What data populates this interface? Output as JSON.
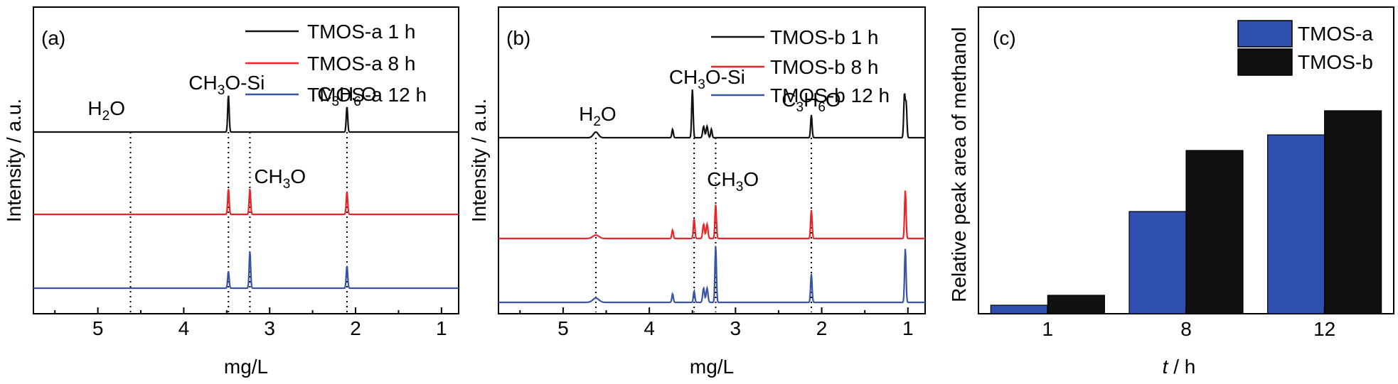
{
  "colors": {
    "black": "#111111",
    "red": "#e8262a",
    "blue": "#3a54a4",
    "bar_a": "#2f4fae",
    "bar_b": "#111111"
  },
  "chart_data": [
    {
      "type": "line",
      "panel_label": "(a)",
      "xlabel": "mg/L",
      "ylabel": "Intensity / a.u.",
      "xlim": [
        5.75,
        0.8
      ],
      "x_reversed": true,
      "x_ticks": [
        5,
        4,
        3,
        2,
        1
      ],
      "x_tick_labels": [
        "5",
        "4",
        "3",
        "2",
        "1"
      ],
      "legend": "top-right",
      "series": [
        {
          "name": "TMOS-a 1 h",
          "color_key": "black",
          "baseline": 0.62,
          "humps": [],
          "peaks": [
            {
              "x": 3.48,
              "h": 0.13,
              "w": 0.012
            },
            {
              "x": 2.1,
              "h": 0.09,
              "w": 0.012
            }
          ]
        },
        {
          "name": "TMOS-a 8 h",
          "color_key": "red",
          "baseline": 0.33,
          "humps": [],
          "peaks": [
            {
              "x": 3.48,
              "h": 0.09,
              "w": 0.012
            },
            {
              "x": 3.23,
              "h": 0.09,
              "w": 0.012
            },
            {
              "x": 2.1,
              "h": 0.08,
              "w": 0.012
            }
          ]
        },
        {
          "name": "TMOS-a 12 h",
          "color_key": "blue",
          "baseline": 0.07,
          "humps": [],
          "peaks": [
            {
              "x": 3.48,
              "h": 0.06,
              "w": 0.012
            },
            {
              "x": 3.23,
              "h": 0.13,
              "w": 0.012
            },
            {
              "x": 2.1,
              "h": 0.08,
              "w": 0.012
            }
          ]
        }
      ],
      "dotted_lines": [
        {
          "x": 4.62,
          "y_top": 0.62
        },
        {
          "x": 3.48,
          "y_top": 0.62
        },
        {
          "x": 3.23,
          "y_top": 0.62
        },
        {
          "x": 2.1,
          "y_top": 0.62
        }
      ],
      "annotations": [
        {
          "x": 4.9,
          "y": 0.68,
          "text": "H",
          "sub": "2",
          "rest": "O"
        },
        {
          "x": 3.5,
          "y": 0.77,
          "text": "CH",
          "sub": "3",
          "rest": "O-Si"
        },
        {
          "x": 2.88,
          "y": 0.44,
          "text": "CH",
          "sub": "3",
          "rest": "O"
        },
        {
          "x": 2.1,
          "y": 0.73,
          "text": "C",
          "sub": "3",
          "rest": "H",
          "sub2": "6",
          "rest2": "O"
        }
      ]
    },
    {
      "type": "line",
      "panel_label": "(b)",
      "xlabel": "mg/L",
      "ylabel": "Intensity / a.u.",
      "xlim": [
        5.75,
        0.8
      ],
      "x_reversed": true,
      "x_ticks": [
        5,
        4,
        3,
        2,
        1
      ],
      "x_tick_labels": [
        "5",
        "4",
        "3",
        "2",
        "1"
      ],
      "legend": "top-right",
      "series": [
        {
          "name": "TMOS-b 1 h",
          "color_key": "black",
          "baseline": 0.6,
          "humps": [
            {
              "x": 4.62,
              "h": 0.02,
              "w": 0.04
            }
          ],
          "peaks": [
            {
              "x": 3.73,
              "h": 0.03,
              "w": 0.012
            },
            {
              "x": 3.5,
              "h": 0.17,
              "w": 0.012
            },
            {
              "x": 3.37,
              "h": 0.04,
              "w": 0.015
            },
            {
              "x": 3.33,
              "h": 0.04,
              "w": 0.015
            },
            {
              "x": 3.28,
              "h": 0.03,
              "w": 0.012
            },
            {
              "x": 2.12,
              "h": 0.08,
              "w": 0.012
            },
            {
              "x": 1.04,
              "h": 0.15,
              "w": 0.012
            },
            {
              "x": 1.02,
              "h": 0.12,
              "w": 0.012
            }
          ]
        },
        {
          "name": "TMOS-b 8 h",
          "color_key": "red",
          "baseline": 0.245,
          "humps": [
            {
              "x": 4.62,
              "h": 0.012,
              "w": 0.05
            }
          ],
          "peaks": [
            {
              "x": 3.73,
              "h": 0.03,
              "w": 0.012
            },
            {
              "x": 3.48,
              "h": 0.07,
              "w": 0.012
            },
            {
              "x": 3.37,
              "h": 0.05,
              "w": 0.015
            },
            {
              "x": 3.33,
              "h": 0.05,
              "w": 0.015
            },
            {
              "x": 3.23,
              "h": 0.12,
              "w": 0.012
            },
            {
              "x": 2.12,
              "h": 0.1,
              "w": 0.012
            },
            {
              "x": 1.03,
              "h": 0.17,
              "w": 0.012
            }
          ]
        },
        {
          "name": "TMOS-b 12 h",
          "color_key": "blue",
          "baseline": 0.02,
          "humps": [
            {
              "x": 4.62,
              "h": 0.015,
              "w": 0.05
            }
          ],
          "peaks": [
            {
              "x": 3.73,
              "h": 0.03,
              "w": 0.012
            },
            {
              "x": 3.48,
              "h": 0.04,
              "w": 0.012
            },
            {
              "x": 3.37,
              "h": 0.05,
              "w": 0.015
            },
            {
              "x": 3.33,
              "h": 0.05,
              "w": 0.015
            },
            {
              "x": 3.23,
              "h": 0.2,
              "w": 0.012
            },
            {
              "x": 2.12,
              "h": 0.1,
              "w": 0.012
            },
            {
              "x": 1.03,
              "h": 0.19,
              "w": 0.012
            }
          ]
        }
      ],
      "dotted_lines": [
        {
          "x": 4.62,
          "y_top": 0.6
        },
        {
          "x": 3.48,
          "y_top": 0.6
        },
        {
          "x": 3.23,
          "y_top": 0.6
        },
        {
          "x": 2.12,
          "y_top": 0.6
        }
      ],
      "annotations": [
        {
          "x": 4.6,
          "y": 0.66,
          "text": "H",
          "sub": "2",
          "rest": "O"
        },
        {
          "x": 3.33,
          "y": 0.79,
          "text": "CH",
          "sub": "3",
          "rest": "O-Si"
        },
        {
          "x": 3.03,
          "y": 0.43,
          "text": "CH",
          "sub": "3",
          "rest": "O"
        },
        {
          "x": 2.12,
          "y": 0.71,
          "text": "C",
          "sub": "3",
          "rest": "H",
          "sub2": "6",
          "rest2": "O"
        }
      ]
    },
    {
      "type": "bar",
      "panel_label": "(c)",
      "categories": [
        "1",
        "8",
        "12"
      ],
      "xlabel_italic": "t",
      "xlabel_rest": " / h",
      "ylabel": "Relative peak area of methanol",
      "ylim": [
        0,
        1.08
      ],
      "legend": "top-right",
      "series": [
        {
          "name": "TMOS-a",
          "color_key": "bar_a",
          "values": [
            0.03,
            0.36,
            0.63
          ]
        },
        {
          "name": "TMOS-b",
          "color_key": "bar_b",
          "values": [
            0.065,
            0.575,
            0.715
          ]
        }
      ]
    }
  ]
}
